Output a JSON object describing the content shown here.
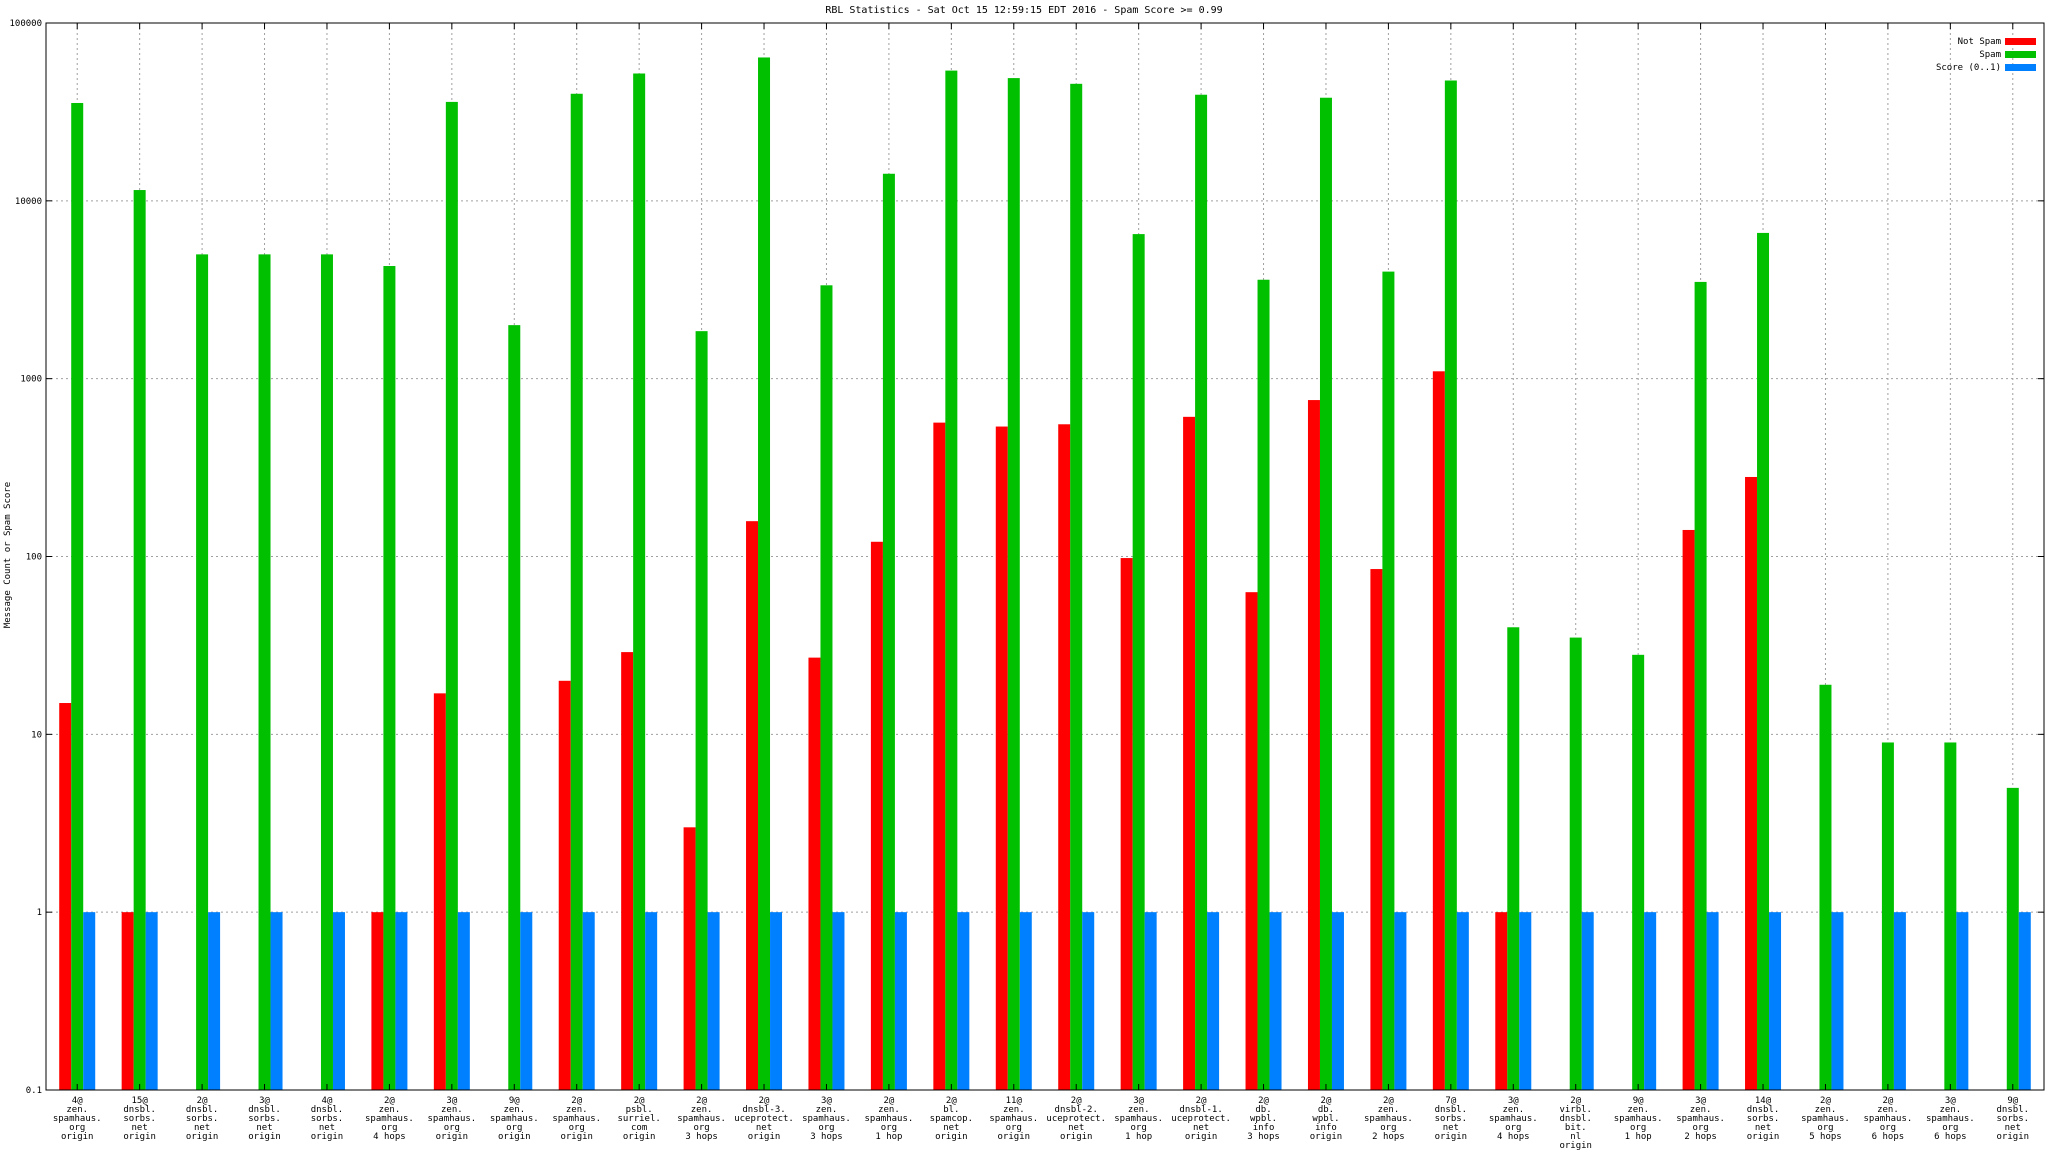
{
  "chart_data": {
    "type": "bar",
    "title": "RBL Statistics - Sat Oct 15 12:59:15 EDT 2016 - Spam Score >= 0.99",
    "xlabel": "",
    "ylabel": "Message Count or Spam Score",
    "yscale": "log",
    "ylim": [
      0.1,
      100000
    ],
    "yticks": [
      {
        "value": 0.1,
        "label": "0.1"
      },
      {
        "value": 1,
        "label": "1"
      },
      {
        "value": 10,
        "label": "10"
      },
      {
        "value": 100,
        "label": "100"
      },
      {
        "value": 1000,
        "label": "1000"
      },
      {
        "value": 10000,
        "label": "10000"
      },
      {
        "value": 100000,
        "label": "100000"
      }
    ],
    "grid": true,
    "legend": "top-right",
    "categories": [
      [
        "4@",
        "zen.",
        "spamhaus.",
        "org",
        "origin"
      ],
      [
        "15@",
        "dnsbl.",
        "sorbs.",
        "net",
        "origin"
      ],
      [
        "2@",
        "dnsbl.",
        "sorbs.",
        "net",
        "origin"
      ],
      [
        "3@",
        "dnsbl.",
        "sorbs.",
        "net",
        "origin"
      ],
      [
        "4@",
        "dnsbl.",
        "sorbs.",
        "net",
        "origin"
      ],
      [
        "2@",
        "zen.",
        "spamhaus.",
        "org",
        "4 hops"
      ],
      [
        "3@",
        "zen.",
        "spamhaus.",
        "org",
        "origin"
      ],
      [
        "9@",
        "zen.",
        "spamhaus.",
        "org",
        "origin"
      ],
      [
        "2@",
        "zen.",
        "spamhaus.",
        "org",
        "origin"
      ],
      [
        "2@",
        "psbl.",
        "surriel.",
        "com",
        "origin"
      ],
      [
        "2@",
        "zen.",
        "spamhaus.",
        "org",
        "3 hops"
      ],
      [
        "2@",
        "dnsbl-3.",
        "uceprotect.",
        "net",
        "origin"
      ],
      [
        "3@",
        "zen.",
        "spamhaus.",
        "org",
        "3 hops"
      ],
      [
        "2@",
        "zen.",
        "spamhaus.",
        "org",
        "1 hop"
      ],
      [
        "2@",
        "bl.",
        "spamcop.",
        "net",
        "origin"
      ],
      [
        "11@",
        "zen.",
        "spamhaus.",
        "org",
        "origin"
      ],
      [
        "2@",
        "dnsbl-2.",
        "uceprotect.",
        "net",
        "origin"
      ],
      [
        "3@",
        "zen.",
        "spamhaus.",
        "org",
        "1 hop"
      ],
      [
        "2@",
        "dnsbl-1.",
        "uceprotect.",
        "net",
        "origin"
      ],
      [
        "2@",
        "db.",
        "wpbl.",
        "info",
        "3 hops"
      ],
      [
        "2@",
        "db.",
        "wpbl.",
        "info",
        "origin"
      ],
      [
        "2@",
        "zen.",
        "spamhaus.",
        "org",
        "2 hops"
      ],
      [
        "7@",
        "dnsbl.",
        "sorbs.",
        "net",
        "origin"
      ],
      [
        "3@",
        "zen.",
        "spamhaus.",
        "org",
        "4 hops"
      ],
      [
        "2@",
        "virbl.",
        "dnsbl.",
        "bit.",
        "nl",
        "origin"
      ],
      [
        "9@",
        "zen.",
        "spamhaus.",
        "org",
        "1 hop"
      ],
      [
        "3@",
        "zen.",
        "spamhaus.",
        "org",
        "2 hops"
      ],
      [
        "14@",
        "dnsbl.",
        "sorbs.",
        "net",
        "origin"
      ],
      [
        "2@",
        "zen.",
        "spamhaus.",
        "org",
        "5 hops"
      ],
      [
        "2@",
        "zen.",
        "spamhaus.",
        "org",
        "6 hops"
      ],
      [
        "3@",
        "zen.",
        "spamhaus.",
        "org",
        "6 hops"
      ],
      [
        "9@",
        "dnsbl.",
        "sorbs.",
        "net",
        "origin"
      ]
    ],
    "series": [
      {
        "name": "Not Spam",
        "color": "#ff0000",
        "values": [
          15,
          1,
          null,
          null,
          null,
          1,
          17,
          null,
          20,
          29,
          3,
          158,
          27,
          121,
          566,
          538,
          554,
          98,
          610,
          63,
          758,
          85,
          1100,
          1,
          null,
          null,
          141,
          280,
          null,
          null,
          null,
          null
        ]
      },
      {
        "name": "Spam",
        "color": "#00c000",
        "values": [
          35500,
          11500,
          5000,
          5000,
          5000,
          4300,
          36000,
          2000,
          40000,
          52000,
          1850,
          64000,
          3350,
          14200,
          54000,
          49000,
          45500,
          6500,
          39500,
          3600,
          38000,
          4000,
          47500,
          40,
          35,
          28,
          3500,
          6600,
          19,
          9,
          9,
          5
        ]
      },
      {
        "name": "Score (0..1)",
        "color": "#0080ff",
        "values": [
          1,
          1,
          1,
          1,
          1,
          1,
          1,
          1,
          1,
          1,
          1,
          1,
          1,
          1,
          1,
          1,
          1,
          1,
          1,
          1,
          1,
          1,
          1,
          1,
          1,
          1,
          1,
          1,
          1,
          1,
          1,
          1
        ]
      }
    ]
  }
}
